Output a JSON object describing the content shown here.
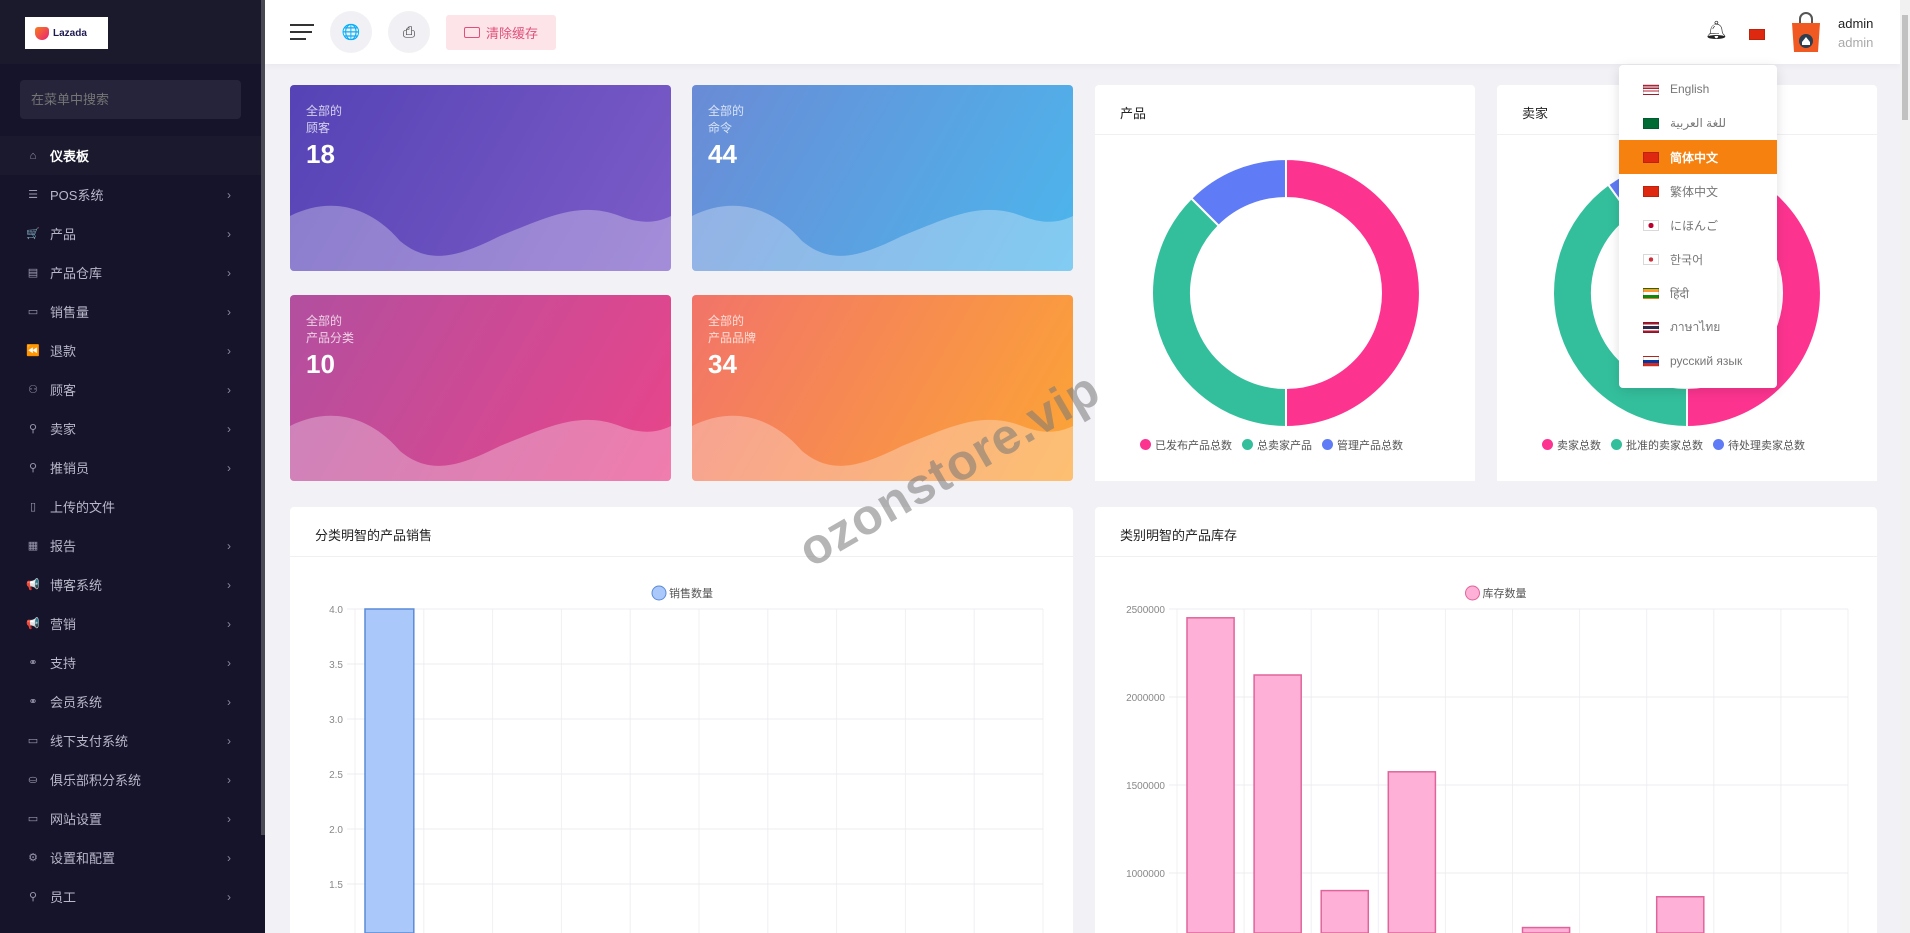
{
  "sidebar": {
    "logo_text": "Lazada",
    "search_placeholder": "在菜单中搜索",
    "items": [
      {
        "label": "仪表板",
        "icon": "home-icon",
        "glyph": "⌂",
        "active": true,
        "chevron": false
      },
      {
        "label": "POS系统",
        "icon": "list-icon",
        "glyph": "☰",
        "chevron": true
      },
      {
        "label": "产品",
        "icon": "cart-icon",
        "glyph": "🛒",
        "chevron": true
      },
      {
        "label": "产品仓库",
        "icon": "warehouse-icon",
        "glyph": "▤",
        "chevron": true
      },
      {
        "label": "销售量",
        "icon": "money-icon",
        "glyph": "▭",
        "chevron": true
      },
      {
        "label": "退款",
        "icon": "rewind-icon",
        "glyph": "⏪",
        "chevron": true
      },
      {
        "label": "顾客",
        "icon": "users-icon",
        "glyph": "⚇",
        "chevron": true
      },
      {
        "label": "卖家",
        "icon": "user-icon",
        "glyph": "⚲",
        "chevron": true
      },
      {
        "label": "推销员",
        "icon": "user-icon",
        "glyph": "⚲",
        "chevron": true
      },
      {
        "label": "上传的文件",
        "icon": "folder-icon",
        "glyph": "▯",
        "chevron": false
      },
      {
        "label": "报告",
        "icon": "document-icon",
        "glyph": "▦",
        "chevron": true
      },
      {
        "label": "博客系统",
        "icon": "megaphone-icon",
        "glyph": "📢",
        "chevron": true
      },
      {
        "label": "营销",
        "icon": "megaphone-icon",
        "glyph": "📢",
        "chevron": true
      },
      {
        "label": "支持",
        "icon": "link-icon",
        "glyph": "⚭",
        "chevron": true
      },
      {
        "label": "会员系统",
        "icon": "link-icon",
        "glyph": "⚭",
        "chevron": true
      },
      {
        "label": "线下支付系统",
        "icon": "cash-icon",
        "glyph": "▭",
        "chevron": true
      },
      {
        "label": "俱乐部积分系统",
        "icon": "coin-icon",
        "glyph": "⛀",
        "chevron": true
      },
      {
        "label": "网站设置",
        "icon": "monitor-icon",
        "glyph": "▭",
        "chevron": true
      },
      {
        "label": "设置和配置",
        "icon": "gear-icon",
        "glyph": "⚙",
        "chevron": true
      },
      {
        "label": "员工",
        "icon": "user-icon",
        "glyph": "⚲",
        "chevron": true
      }
    ]
  },
  "header": {
    "clear_cache": "清除缓存",
    "user_name": "admin",
    "user_role": "admin"
  },
  "language_menu": {
    "selected": "简体中文",
    "items": [
      {
        "label": "English",
        "flag": "us"
      },
      {
        "label": "للغة العربية",
        "flag": "sa"
      },
      {
        "label": "简体中文",
        "flag": "cn"
      },
      {
        "label": "繁体中文",
        "flag": "hk"
      },
      {
        "label": "にほんご",
        "flag": "jp"
      },
      {
        "label": "한국어",
        "flag": "kr"
      },
      {
        "label": "हिंदी",
        "flag": "in"
      },
      {
        "label": "ภาษาไทย",
        "flag": "th"
      },
      {
        "label": "русский язык",
        "flag": "ru"
      }
    ]
  },
  "stats": [
    {
      "label1": "全部的",
      "label2": "顾客",
      "value": "18",
      "colors": [
        "#5543b5",
        "#7d5cc8"
      ]
    },
    {
      "label1": "全部的",
      "label2": "命令",
      "value": "44",
      "colors": [
        "#6a8bd6",
        "#4cb6ec"
      ]
    },
    {
      "label1": "全部的",
      "label2": "产品分类",
      "value": "10",
      "colors": [
        "#b24f9f",
        "#e9458a"
      ]
    },
    {
      "label1": "全部的",
      "label2": "产品品牌",
      "value": "34",
      "colors": [
        "#f27469",
        "#fca535"
      ]
    }
  ],
  "watermark": "ozonstore.vip",
  "chart_data": [
    {
      "type": "pie",
      "title": "产品",
      "donut": true,
      "labels": [
        "已发布产品总数",
        "总卖家产品",
        "管理产品总数"
      ],
      "values": [
        4,
        3,
        1
      ],
      "colors": [
        "#fc3490",
        "#34bf9c",
        "#5f7bf5"
      ],
      "legend": "bottom"
    },
    {
      "type": "pie",
      "title": "卖家",
      "donut": true,
      "labels": [
        "卖家总数",
        "批准的卖家总数",
        "待处理卖家总数"
      ],
      "values": [
        5,
        4,
        1
      ],
      "colors": [
        "#fc3490",
        "#34bf9c",
        "#5f7bf5"
      ],
      "legend": "bottom"
    },
    {
      "type": "bar",
      "title": "分类明智的产品销售",
      "series": [
        {
          "name": "销售数量",
          "values": [
            4,
            0,
            0,
            0,
            0,
            0,
            0,
            0,
            0,
            0
          ]
        }
      ],
      "yticks": [
        "4.0",
        "3.5",
        "3.0",
        "2.5",
        "2.0",
        "1.5"
      ],
      "ylim": [
        0,
        4
      ],
      "grid": true,
      "legend": "top",
      "color": "#aac8fa",
      "border": "#5b8ad8"
    },
    {
      "type": "bar",
      "title": "类别明智的产品库存",
      "series": [
        {
          "name": "库存数量",
          "values": [
            2450000,
            2125000,
            900000,
            1575000,
            0,
            690000,
            0,
            865000,
            0,
            0
          ]
        }
      ],
      "yticks": [
        "2500000",
        "2000000",
        "1500000",
        "1000000"
      ],
      "ylim": [
        0,
        2500000
      ],
      "grid": true,
      "legend": "top",
      "color": "#feb0d6",
      "border": "#e0649c"
    }
  ]
}
